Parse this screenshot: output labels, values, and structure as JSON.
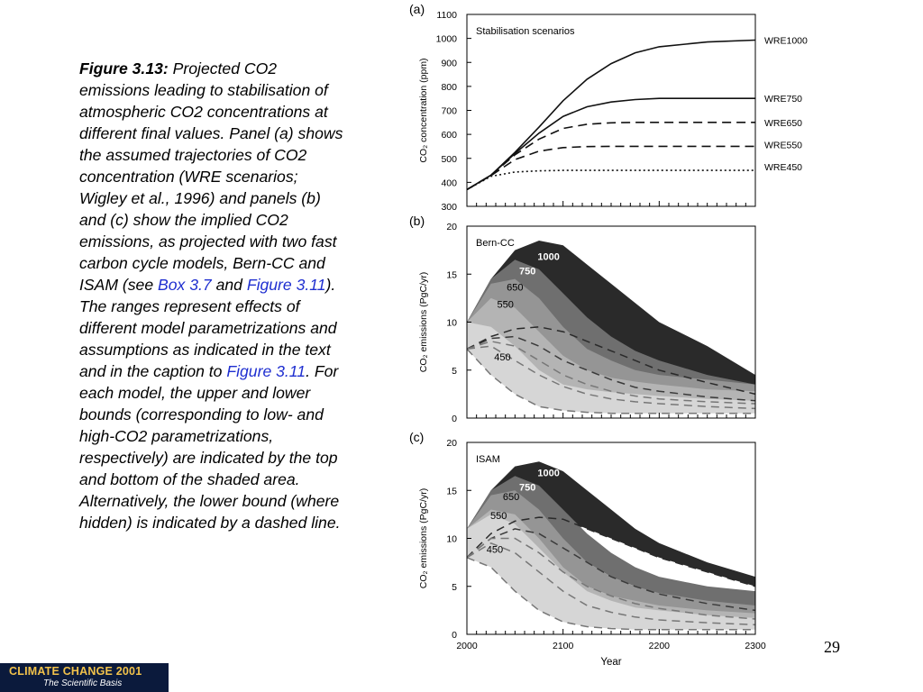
{
  "caption": {
    "lead": "Figure 3.13:",
    "part1": " Projected CO2 emissions leading to stabilisation of atmospheric CO2 concentrations at different final values. Panel (a) shows the assumed trajectories of CO2 concentration (WRE scenarios; Wigley et al., 1996) and panels (b) and (c) show the implied CO2 emissions, as projected with two fast carbon cycle models, Bern-CC and ISAM (see ",
    "link1": "Box 3.7",
    "part2": " and ",
    "link2": "Figure 3.11",
    "part3": "). The ranges represent effects of different model parametrizations and assumptions as indicated in the text and in the caption to ",
    "link3": "Figure 3.11",
    "part4": ". For each model, the upper and lower bounds (corresponding to low- and high-CO2 parametrizations, respectively) are indicated by the top and bottom of the shaded area. Alternatively, the lower bound (where hidden) is indicated by a dashed line."
  },
  "page_number": "29",
  "footer": {
    "title": "CLIMATE CHANGE 2001",
    "subtitle": "The Scientific Basis"
  },
  "chart_data": [
    {
      "type": "line",
      "panel_label": "(a)",
      "title": "Stabilisation scenarios",
      "ylabel": "CO₂ concentration (ppm)",
      "xlim": [
        2000,
        2300
      ],
      "ylim": [
        300,
        1100
      ],
      "yticks": [
        300,
        400,
        500,
        600,
        700,
        800,
        900,
        1000,
        1100
      ],
      "x": [
        2000,
        2025,
        2050,
        2075,
        2100,
        2125,
        2150,
        2175,
        2200,
        2250,
        2300
      ],
      "series": [
        {
          "name": "WRE1000",
          "style": "solid",
          "values": [
            370,
            430,
            525,
            630,
            740,
            830,
            895,
            940,
            965,
            985,
            993
          ]
        },
        {
          "name": "WRE750",
          "style": "solid",
          "values": [
            370,
            430,
            520,
            605,
            675,
            715,
            735,
            745,
            750,
            750,
            750
          ]
        },
        {
          "name": "WRE650",
          "style": "dashed",
          "values": [
            370,
            430,
            515,
            580,
            625,
            642,
            648,
            650,
            650,
            650,
            650
          ]
        },
        {
          "name": "WRE550",
          "style": "dashed",
          "values": [
            370,
            428,
            495,
            530,
            545,
            549,
            550,
            550,
            550,
            550,
            550
          ]
        },
        {
          "name": "WRE450",
          "style": "dotted",
          "values": [
            370,
            425,
            443,
            448,
            450,
            450,
            450,
            450,
            450,
            450,
            450
          ]
        }
      ]
    },
    {
      "type": "area",
      "panel_label": "(b)",
      "title": "Bern-CC",
      "ylabel": "CO₂ emissions (PgC/yr)",
      "xlim": [
        2000,
        2300
      ],
      "ylim": [
        0,
        20
      ],
      "yticks": [
        0,
        5,
        10,
        15,
        20
      ],
      "x": [
        2000,
        2025,
        2050,
        2075,
        2100,
        2125,
        2150,
        2175,
        2200,
        2250,
        2300
      ],
      "series": [
        {
          "name": "1000",
          "color": "#2a2a2a",
          "upper": [
            10,
            14.5,
            17.5,
            18.5,
            18,
            16,
            14,
            12,
            10,
            7.5,
            4.5
          ],
          "lower": [
            7.2,
            8.5,
            9.3,
            9.5,
            9,
            8,
            7,
            6,
            5,
            3.7,
            2.5
          ]
        },
        {
          "name": "750",
          "color": "#6f6f6f",
          "upper": [
            10,
            14.5,
            16.5,
            15.5,
            13,
            10.5,
            8.5,
            7,
            6,
            4.5,
            3.5
          ],
          "lower": [
            7.2,
            8.3,
            8.5,
            7.5,
            6,
            5,
            4,
            3.2,
            2.8,
            2.2,
            1.8
          ]
        },
        {
          "name": "650",
          "color": "#959595",
          "upper": [
            10,
            14,
            14.5,
            12.5,
            9.5,
            7.2,
            6,
            5,
            4.5,
            4,
            3.5
          ],
          "lower": [
            7.2,
            8,
            7.5,
            6,
            4.5,
            3.5,
            2.8,
            2.3,
            2,
            1.7,
            1.5
          ]
        },
        {
          "name": "550",
          "color": "#b4b4b4",
          "upper": [
            10,
            12.5,
            11.5,
            9,
            6.5,
            5,
            4.2,
            3.8,
            3.5,
            3,
            2.8
          ],
          "lower": [
            7.2,
            7.5,
            6,
            4.5,
            3.3,
            2.5,
            2,
            1.7,
            1.5,
            1.2,
            1
          ]
        },
        {
          "name": "450",
          "color": "#d6d6d6",
          "upper": [
            10,
            9.5,
            7.5,
            5,
            3.5,
            3,
            2.7,
            2.5,
            2.3,
            2,
            1.8
          ],
          "lower": [
            7.2,
            4.5,
            2.5,
            1.2,
            0.8,
            0.6,
            0.5,
            0.5,
            0.5,
            0.5,
            0.5
          ]
        }
      ]
    },
    {
      "type": "area",
      "panel_label": "(c)",
      "title": "ISAM",
      "ylabel": "CO₂ emissions (PgC/yr)",
      "xlabel": "Year",
      "xlim": [
        2000,
        2300
      ],
      "ylim": [
        0,
        20
      ],
      "yticks": [
        0,
        5,
        10,
        15,
        20
      ],
      "xticks": [
        2000,
        2100,
        2200,
        2300
      ],
      "x": [
        2000,
        2025,
        2050,
        2075,
        2100,
        2125,
        2150,
        2175,
        2200,
        2250,
        2300
      ],
      "series": [
        {
          "name": "1000",
          "color": "#2a2a2a",
          "upper": [
            11,
            15,
            17.5,
            18,
            17,
            15,
            13,
            11,
            9.5,
            7.5,
            6
          ],
          "lower": [
            8,
            10.5,
            11.8,
            12.2,
            12,
            11,
            10,
            9,
            8,
            6.5,
            5
          ]
        },
        {
          "name": "750",
          "color": "#6f6f6f",
          "upper": [
            11,
            15,
            16.5,
            15.5,
            13,
            10.5,
            8.5,
            7,
            6,
            5,
            4.5
          ],
          "lower": [
            8,
            10,
            11,
            10.5,
            9,
            7.5,
            6,
            5,
            4.2,
            3.2,
            2.5
          ]
        },
        {
          "name": "650",
          "color": "#959595",
          "upper": [
            11,
            14.5,
            15,
            13,
            10,
            7.5,
            6,
            5,
            4.3,
            3.5,
            3
          ],
          "lower": [
            8,
            10,
            10,
            8.5,
            6.5,
            5,
            4,
            3.2,
            2.7,
            2,
            1.6
          ]
        },
        {
          "name": "550",
          "color": "#b4b4b4",
          "upper": [
            11,
            13,
            12.5,
            10,
            7,
            5,
            4,
            3.5,
            3,
            2.5,
            2.2
          ],
          "lower": [
            8,
            9.5,
            8.5,
            6.5,
            4.5,
            3,
            2.3,
            1.8,
            1.5,
            1.2,
            1
          ]
        },
        {
          "name": "450",
          "color": "#d6d6d6",
          "upper": [
            11,
            12.5,
            11.5,
            9,
            6.5,
            4.5,
            3.5,
            2.8,
            2.5,
            2,
            1.7
          ],
          "lower": [
            8,
            7,
            4.5,
            2.5,
            1.3,
            0.8,
            0.6,
            0.5,
            0.5,
            0.5,
            0.5
          ]
        }
      ]
    }
  ]
}
